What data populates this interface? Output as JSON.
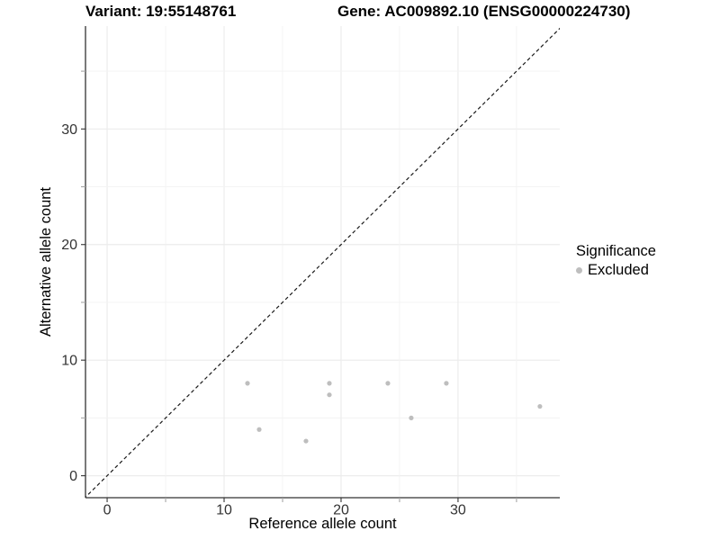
{
  "header": {
    "variant_title": "Variant: 19:55148761",
    "gene_title": "Gene: AC009892.10 (ENSG00000224730)"
  },
  "chart_data": {
    "type": "scatter",
    "xlabel": "Reference allele count",
    "ylabel": "Alternative allele count",
    "xlim": [
      -1.85,
      38.7
    ],
    "ylim": [
      -1.9,
      38.9
    ],
    "x_tick_labels": [
      0,
      10,
      20,
      30
    ],
    "y_tick_labels": [
      0,
      10,
      20,
      30
    ],
    "grid_ticks": [
      0,
      5,
      10,
      15,
      20,
      25,
      30,
      35
    ],
    "grid": true,
    "legend_position": "right",
    "identity_line": {
      "from": -2,
      "to": 39,
      "style": "dashed"
    },
    "series": [
      {
        "name": "Excluded",
        "color": "#bebebe",
        "points": [
          [
            12,
            8
          ],
          [
            13,
            4
          ],
          [
            17,
            3
          ],
          [
            19,
            7
          ],
          [
            19,
            8
          ],
          [
            24,
            8
          ],
          [
            26,
            5
          ],
          [
            29,
            8
          ],
          [
            37,
            6
          ]
        ]
      }
    ]
  },
  "legend": {
    "title": "Significance",
    "items": [
      {
        "label": "Excluded",
        "color": "#bebebe"
      }
    ]
  },
  "colors": {
    "background": "#ffffff",
    "grid_major": "#ececec",
    "grid_minor": "#f3f3f3",
    "axis_line": "#333333",
    "tick_major": "#333333",
    "tick_minor": "#a6a6a6",
    "tick_label": "#333333",
    "identity_line": "#1a1a1a",
    "title_text": "#000000"
  }
}
